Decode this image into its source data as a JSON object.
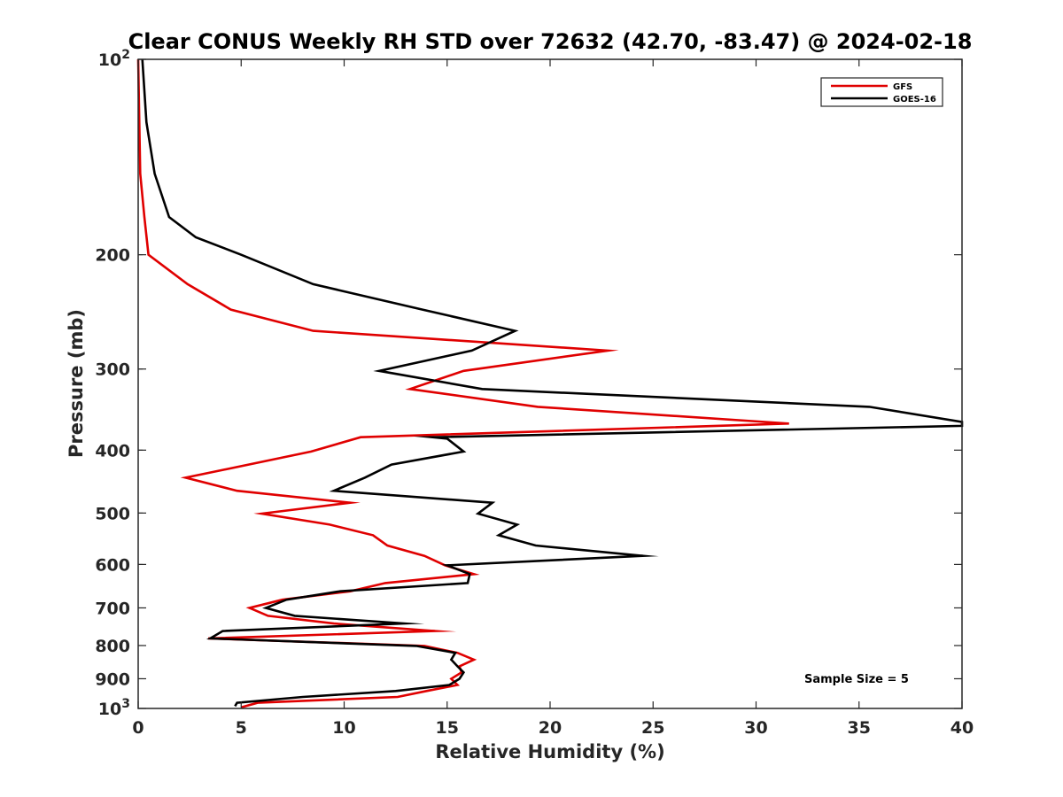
{
  "chart_data": {
    "type": "line",
    "title": "Clear CONUS Weekly RH STD over 72632 (42.70, -83.47) @ 2024-02-18",
    "xlabel": "Relative Humidity (%)",
    "ylabel": "Pressure (mb)",
    "xlim": [
      0,
      40
    ],
    "ylim": [
      100,
      1000
    ],
    "y_scale": "log",
    "y_reversed": true,
    "x_ticks": [
      0,
      5,
      10,
      15,
      20,
      25,
      30,
      35,
      40
    ],
    "y_ticks": [
      {
        "value": 100,
        "label": "10",
        "sup": "2"
      },
      {
        "value": 200,
        "label": "200",
        "sup": ""
      },
      {
        "value": 300,
        "label": "300",
        "sup": ""
      },
      {
        "value": 400,
        "label": "400",
        "sup": ""
      },
      {
        "value": 500,
        "label": "500",
        "sup": ""
      },
      {
        "value": 600,
        "label": "600",
        "sup": ""
      },
      {
        "value": 700,
        "label": "700",
        "sup": ""
      },
      {
        "value": 800,
        "label": "800",
        "sup": ""
      },
      {
        "value": 900,
        "label": "900",
        "sup": ""
      },
      {
        "value": 1000,
        "label": "10",
        "sup": "3"
      }
    ],
    "legend_position": "top-right",
    "annotation": "Sample Size = 5",
    "series": [
      {
        "name": "GFS",
        "color": "#e00000",
        "points": [
          [
            0.0,
            100
          ],
          [
            0.1,
            150
          ],
          [
            0.3,
            175
          ],
          [
            0.5,
            200
          ],
          [
            2.4,
            222
          ],
          [
            4.5,
            243
          ],
          [
            8.5,
            262
          ],
          [
            22.8,
            281
          ],
          [
            15.8,
            302
          ],
          [
            13.2,
            322
          ],
          [
            19.4,
            343
          ],
          [
            31.6,
            364
          ],
          [
            10.8,
            382
          ],
          [
            8.4,
            402
          ],
          [
            2.3,
            441
          ],
          [
            4.8,
            462
          ],
          [
            10.3,
            482
          ],
          [
            6.0,
            501
          ],
          [
            9.3,
            521
          ],
          [
            11.4,
            541
          ],
          [
            12.1,
            561
          ],
          [
            13.9,
            582
          ],
          [
            14.9,
            602
          ],
          [
            16.3,
            621
          ],
          [
            12.0,
            641
          ],
          [
            10.3,
            660
          ],
          [
            7.0,
            680
          ],
          [
            5.4,
            700
          ],
          [
            6.3,
            720
          ],
          [
            9.5,
            740
          ],
          [
            14.4,
            760
          ],
          [
            3.4,
            780
          ],
          [
            13.9,
            801
          ],
          [
            15.5,
            821
          ],
          [
            16.3,
            841
          ],
          [
            15.6,
            861
          ],
          [
            15.7,
            880
          ],
          [
            15.2,
            900
          ],
          [
            15.5,
            920
          ],
          [
            14.0,
            940
          ],
          [
            12.6,
            960
          ],
          [
            5.8,
            980
          ],
          [
            5.0,
            996
          ]
        ]
      },
      {
        "name": "GOES-16",
        "color": "#000000",
        "points": [
          [
            0.2,
            100
          ],
          [
            0.4,
            125
          ],
          [
            0.8,
            150
          ],
          [
            1.5,
            175
          ],
          [
            2.8,
            188
          ],
          [
            5.0,
            200
          ],
          [
            8.5,
            222
          ],
          [
            13.8,
            243
          ],
          [
            18.3,
            262
          ],
          [
            16.2,
            281
          ],
          [
            11.7,
            302
          ],
          [
            16.7,
            322
          ],
          [
            35.5,
            343
          ],
          [
            40.0,
            362
          ],
          [
            40.0,
            367
          ],
          [
            14.3,
            382
          ],
          [
            15.0,
            384
          ],
          [
            15.8,
            402
          ],
          [
            12.3,
            421
          ],
          [
            11.0,
            441
          ],
          [
            9.5,
            462
          ],
          [
            17.2,
            482
          ],
          [
            16.5,
            501
          ],
          [
            18.4,
            521
          ],
          [
            17.5,
            541
          ],
          [
            19.3,
            561
          ],
          [
            24.5,
            582
          ],
          [
            15.0,
            602
          ],
          [
            16.1,
            621
          ],
          [
            16.0,
            641
          ],
          [
            9.8,
            660
          ],
          [
            7.2,
            680
          ],
          [
            6.2,
            700
          ],
          [
            7.6,
            720
          ],
          [
            12.9,
            740
          ],
          [
            4.1,
            760
          ],
          [
            3.5,
            780
          ],
          [
            13.5,
            801
          ],
          [
            15.4,
            821
          ],
          [
            15.2,
            841
          ],
          [
            15.5,
            861
          ],
          [
            15.8,
            880
          ],
          [
            15.6,
            900
          ],
          [
            15.1,
            920
          ],
          [
            12.5,
            940
          ],
          [
            8.0,
            960
          ],
          [
            4.8,
            980
          ],
          [
            4.7,
            992
          ]
        ]
      }
    ]
  }
}
